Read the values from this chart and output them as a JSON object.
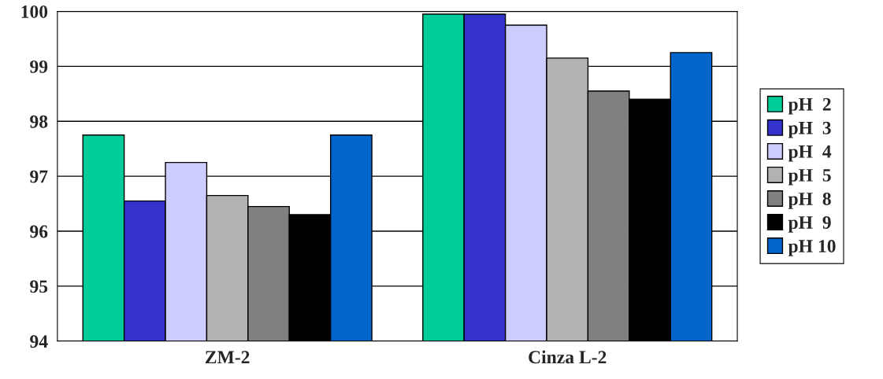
{
  "chart_data": {
    "type": "bar",
    "categories": [
      "ZM-2",
      "Cinza L-2"
    ],
    "series": [
      {
        "name": "pH  2",
        "color": "#00cc99",
        "values": [
          97.75,
          99.95
        ]
      },
      {
        "name": "pH  3",
        "color": "#3333cc",
        "values": [
          96.55,
          99.95
        ]
      },
      {
        "name": "pH  4",
        "color": "#ccccff",
        "values": [
          97.25,
          99.75
        ]
      },
      {
        "name": "pH  5",
        "color": "#b2b2b2",
        "values": [
          96.65,
          99.15
        ]
      },
      {
        "name": "pH  8",
        "color": "#808080",
        "values": [
          96.45,
          98.55
        ]
      },
      {
        "name": "pH  9",
        "color": "#000000",
        "values": [
          96.3,
          98.4
        ]
      },
      {
        "name": "pH 10",
        "color": "#0066cc",
        "values": [
          97.75,
          99.25
        ]
      }
    ],
    "ylim": [
      94,
      100
    ],
    "yticks": [
      94,
      95,
      96,
      97,
      98,
      99,
      100
    ],
    "grid": "y",
    "legend": "right"
  }
}
